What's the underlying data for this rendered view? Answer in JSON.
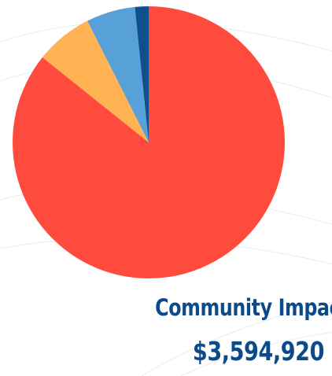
{
  "colors": {
    "background": "#ffffff",
    "background_lines": "#e9eef5",
    "caption": "#0b4a8b"
  },
  "chart_data": {
    "type": "pie",
    "title": "",
    "slices": [
      {
        "value": 0.8574,
        "color": "#ff4b3e"
      },
      {
        "value": 0.0683,
        "color": "#ffb352"
      },
      {
        "value": 0.0581,
        "color": "#57a0d8"
      },
      {
        "value": 0.0162,
        "color": "#0f4f8c"
      }
    ],
    "start_angle_deg": 0,
    "direction": "clockwise",
    "legend": "none"
  },
  "caption": {
    "title": "Community Impact",
    "value": "$3,594,920"
  }
}
